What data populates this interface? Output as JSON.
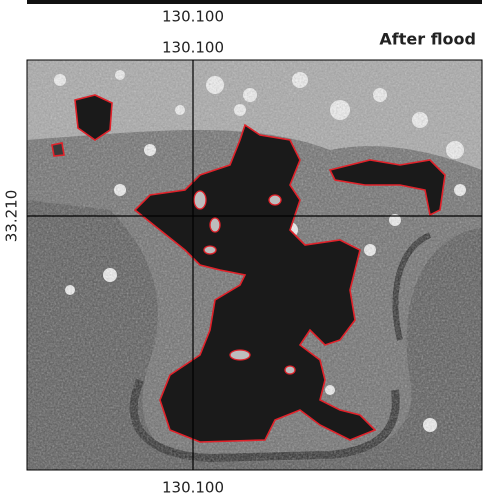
{
  "previous_panel": {
    "x_label_bottom": "130.100"
  },
  "panel": {
    "title": "After flood",
    "x_label_top": "130.100",
    "y_label": "33.210",
    "x_label_bottom": "130.100"
  }
}
